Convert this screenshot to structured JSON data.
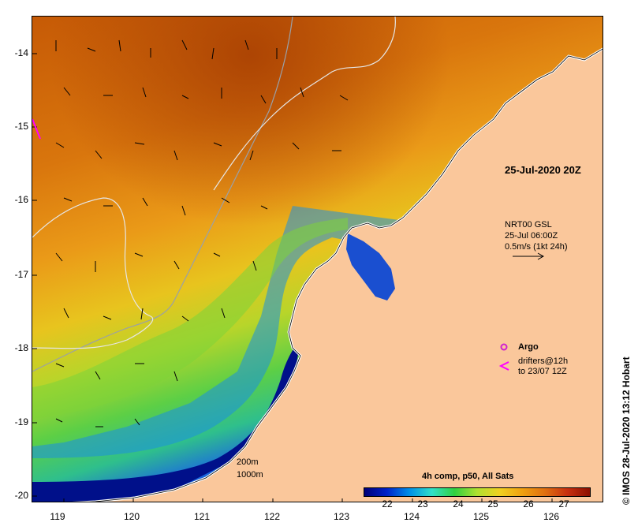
{
  "map": {
    "region_note": "SST map, NW Australia coast",
    "y_axis_labels": [
      "-14",
      "-15",
      "-16",
      "-17",
      "-18",
      "-19",
      "-20"
    ],
    "x_axis_labels": [
      "119",
      "120",
      "121",
      "122",
      "123",
      "124",
      "125",
      "126"
    ],
    "timestamp_label": "25-Jul-2020 20Z",
    "current_info": {
      "line1": "NRT00 GSL",
      "line2": "25-Jul 06:00Z",
      "line3": "0.5m/s (1kt 24h)"
    },
    "legend": {
      "argo_label": "Argo",
      "drifters_line1": "drifters@12h",
      "drifters_line2": "to 23/07 12Z"
    },
    "depth_labels": {
      "d200": "200m",
      "d1000": "1000m"
    },
    "colorbar": {
      "title": "4h comp, p50, All Sats",
      "ticks": [
        "22",
        "23",
        "24",
        "25",
        "26",
        "27"
      ],
      "colors": [
        "#000078",
        "#0022c8",
        "#0090e8",
        "#30e0c8",
        "#30d040",
        "#b0e030",
        "#f0d020",
        "#f0a010",
        "#e07010",
        "#c83010",
        "#8c0f00"
      ]
    },
    "credit": "IMOS 28-Jul-2020 13:12 Hobart",
    "copyright_symbol": "©",
    "colors": {
      "land": "#fac79b",
      "frame": "#000000",
      "argo": "#d020d0",
      "drifter": "#ff00ff"
    }
  }
}
